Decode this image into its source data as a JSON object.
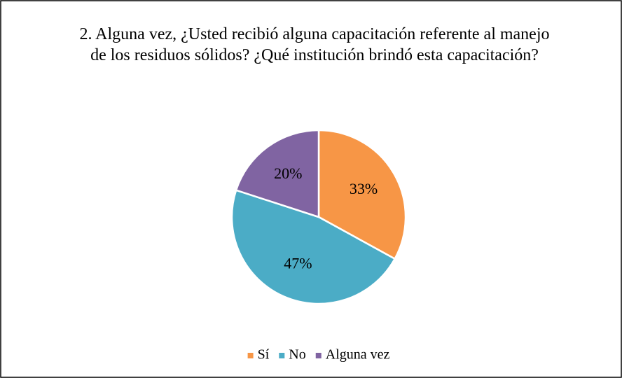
{
  "chart_data": {
    "type": "pie",
    "title": "2. Alguna vez, ¿Usted recibió alguna capacitación referente al manejo de los residuos sólidos? ¿Qué institución brindó esta capacitación?",
    "categories": [
      "Sí",
      "No",
      "Alguna vez"
    ],
    "values": [
      33,
      47,
      20
    ],
    "value_labels": [
      "33%",
      "47%",
      "20%"
    ],
    "colors": [
      "#f79646",
      "#4bacc6",
      "#8064a2"
    ],
    "legend": "bottom"
  }
}
